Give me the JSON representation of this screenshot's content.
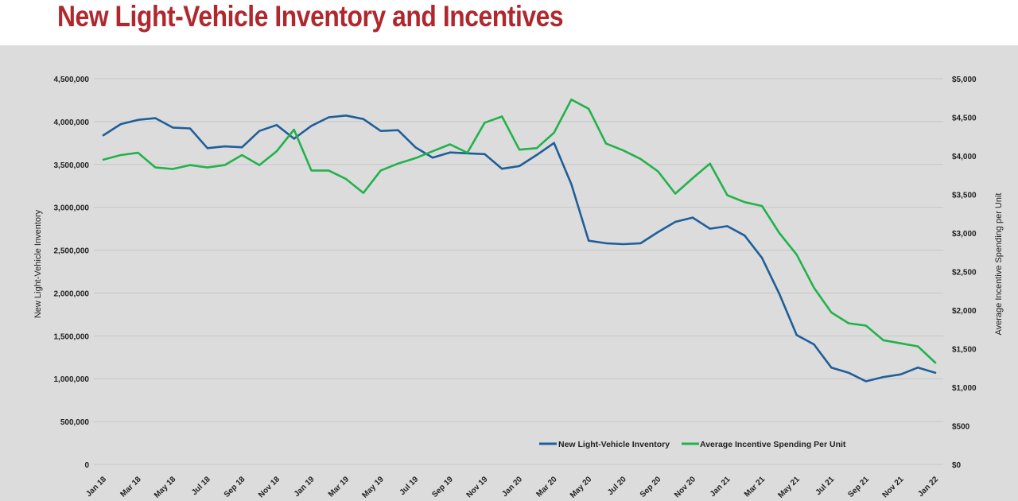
{
  "title": "New Light-Vehicle Inventory and Incentives",
  "chart_data": {
    "type": "line",
    "title": "New Light-Vehicle Inventory and Incentives",
    "ylabel": "New Light-Vehicle Inventory",
    "y2label": "Average Incentive Spending per Unit",
    "ylim": [
      0,
      4500000
    ],
    "y2lim": [
      0,
      5000
    ],
    "yticks": [
      "0",
      "500,000",
      "1,000,000",
      "1,500,000",
      "2,000,000",
      "2,500,000",
      "3,000,000",
      "3,500,000",
      "4,000,000",
      "4,500,000"
    ],
    "y2ticks": [
      "$0",
      "$500",
      "$1,000",
      "$1,500",
      "$2,000",
      "$2,500",
      "$3,000",
      "$3,500",
      "$4,000",
      "$4,500",
      "$5,000"
    ],
    "xticks": [
      "Jan 18",
      "Mar 18",
      "May 18",
      "Jul 18",
      "Sep 18",
      "Nov 18",
      "Jan 19",
      "Mar 19",
      "May 19",
      "Jul 19",
      "Sep 19",
      "Nov 19",
      "Jan 20",
      "Mar 20",
      "May 20",
      "Jul 20",
      "Sep 20",
      "Nov 20",
      "Jan 21",
      "Mar 21",
      "May 21",
      "Jul 21",
      "Sep 21",
      "Nov 21",
      "Jan 22"
    ],
    "x": [
      "Jan 18",
      "Feb 18",
      "Mar 18",
      "Apr 18",
      "May 18",
      "Jun 18",
      "Jul 18",
      "Aug 18",
      "Sep 18",
      "Oct 18",
      "Nov 18",
      "Dec 18",
      "Jan 19",
      "Feb 19",
      "Mar 19",
      "Apr 19",
      "May 19",
      "Jun 19",
      "Jul 19",
      "Aug 19",
      "Sep 19",
      "Oct 19",
      "Nov 19",
      "Dec 19",
      "Jan 20",
      "Feb 20",
      "Mar 20",
      "Apr 20",
      "May 20",
      "Jun 20",
      "Jul 20",
      "Aug 20",
      "Sep 20",
      "Oct 20",
      "Nov 20",
      "Dec 20",
      "Jan 21",
      "Feb 21",
      "Mar 21",
      "Apr 21",
      "May 21",
      "Jun 21",
      "Jul 21",
      "Aug 21",
      "Sep 21",
      "Oct 21",
      "Nov 21",
      "Dec 21",
      "Jan 22"
    ],
    "series": [
      {
        "name": "New Light-Vehicle Inventory",
        "axis": "left",
        "color": "#1f5f99",
        "values": [
          3840000,
          3970000,
          4020000,
          4040000,
          3930000,
          3920000,
          3690000,
          3710000,
          3700000,
          3890000,
          3960000,
          3800000,
          3950000,
          4050000,
          4070000,
          4030000,
          3890000,
          3900000,
          3700000,
          3580000,
          3640000,
          3630000,
          3620000,
          3450000,
          3480000,
          3610000,
          3750000,
          3270000,
          2610000,
          2580000,
          2570000,
          2580000,
          2710000,
          2830000,
          2880000,
          2750000,
          2780000,
          2670000,
          2410000,
          1990000,
          1510000,
          1400000,
          1130000,
          1070000,
          970000,
          1020000,
          1050000,
          1130000,
          1070000
        ]
      },
      {
        "name": "Average Incentive Spending Per Unit",
        "axis": "right",
        "color": "#22b24c",
        "values": [
          3950,
          4010,
          4040,
          3850,
          3830,
          3880,
          3850,
          3880,
          4010,
          3880,
          4060,
          4340,
          3810,
          3810,
          3700,
          3520,
          3810,
          3900,
          3970,
          4060,
          4150,
          4040,
          4430,
          4510,
          4080,
          4100,
          4300,
          4730,
          4610,
          4160,
          4070,
          3960,
          3800,
          3510,
          3710,
          3900,
          3490,
          3400,
          3350,
          3000,
          2720,
          2290,
          1970,
          1830,
          1800,
          1610,
          1570,
          1530,
          1320
        ]
      }
    ],
    "legend": "bottom-right",
    "grid": true
  }
}
